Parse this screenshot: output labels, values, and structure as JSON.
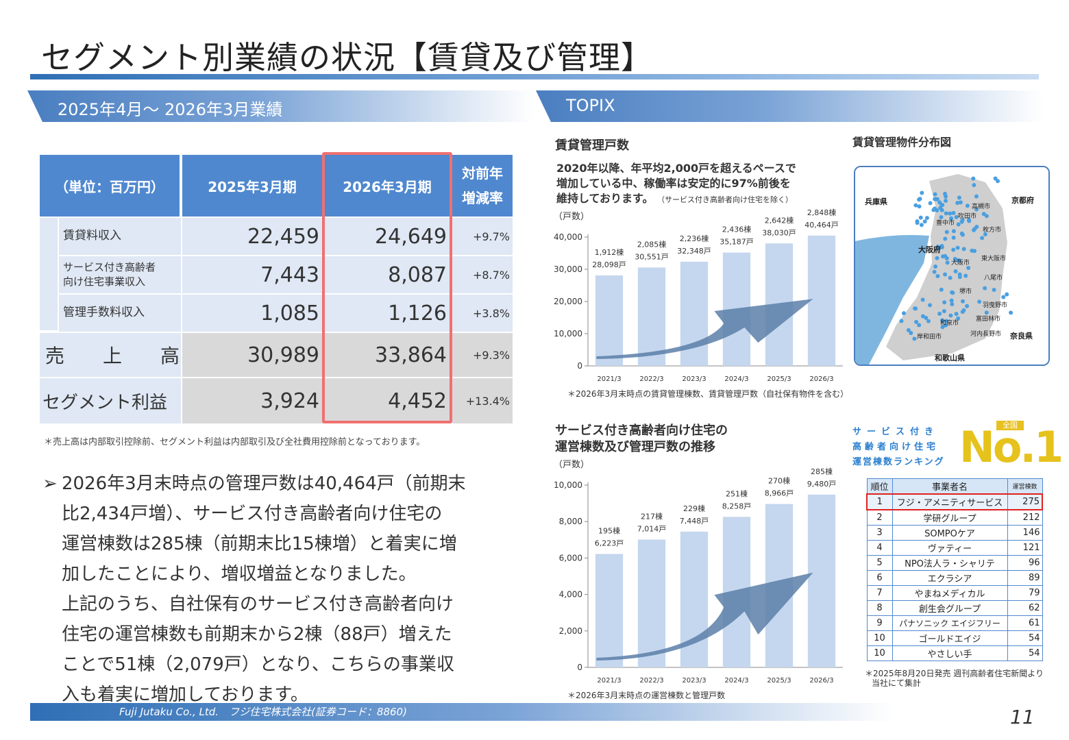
{
  "title": "セグメント別業績の状況【賃貸及び管理】",
  "left_section": {
    "label": "2025年4月～ 2026年3月業績"
  },
  "right_section": {
    "label": "TOPIX"
  },
  "table": {
    "unit_header": "（単位：百万円）",
    "col1": "2025年3月期",
    "col2": "2026年3月期",
    "col3_line1": "対前年",
    "col3_line2": "増減率",
    "rows": [
      {
        "label": "賃貸料収入",
        "label2": "",
        "prev": "22,459",
        "curr": "24,649",
        "rate": "+9.7%"
      },
      {
        "label": "サービス付き高齢者",
        "label2": "向け住宅事業収入",
        "prev": "7,443",
        "curr": "8,087",
        "rate": "+8.7%"
      },
      {
        "label": "管理手数料収入",
        "label2": "",
        "prev": "1,085",
        "curr": "1,126",
        "rate": "+3.8%"
      }
    ],
    "sales": {
      "label": "売　　上　　高",
      "prev": "30,989",
      "curr": "33,864",
      "rate": "+9.3%"
    },
    "profit": {
      "label": "セグメント利益",
      "prev": "3,924",
      "curr": "4,452",
      "rate": "+13.4%"
    },
    "note": "＊売上高は内部取引控除前、セグメント利益は内部取引及び全社費用控除前となっております。"
  },
  "summary": {
    "bullet": "➢",
    "lines": [
      "2026年3月末時点の管理戸数は40,464戸（前期末",
      "比2,434戸増）、サービス付き高齢者向け住宅の",
      "運営棟数は285棟（前期末比15棟増）と着実に増",
      "加したことにより、増収増益となりました。",
      "上記のうち、自社保有のサービス付き高齢者向け",
      "住宅の運営棟数も前期末から2棟（88戸）増えた",
      "ことで51棟（2,079戸）となり、こちらの事業収",
      "入も着実に増加しております。"
    ]
  },
  "chart1": {
    "heading": "賃貸管理戸数",
    "desc1": "2020年以降、年平均2,000戸を超えるペースで",
    "desc2": "増加している中、稼働率は安定的に97%前後を",
    "desc3": "維持しております。",
    "desc3_small": "（サービス付き高齢者向け住宅を除く）",
    "note": "＊2026年3月末時点の賃貸管理棟数、賃貸管理戸数（自社保有物件を含む）"
  },
  "chart2": {
    "heading1": "サービス付き高齢者向け住宅の",
    "heading2": "運営棟数及び管理戸数の推移",
    "note": "＊2026年3月末時点の運営棟数と管理戸数"
  },
  "chart_data": [
    {
      "type": "bar",
      "ylabel": "（戸数）",
      "categories": [
        "2021/3",
        "2022/3",
        "2023/3",
        "2024/3",
        "2025/3",
        "2026/3"
      ],
      "values": [
        28098,
        30551,
        32348,
        35187,
        38030,
        40464
      ],
      "label_top": [
        "1,912棟",
        "2,085棟",
        "2,236棟",
        "2,436棟",
        "2,642棟",
        "2,848棟"
      ],
      "label_bottom": [
        "28,098戸",
        "30,551戸",
        "32,348戸",
        "35,187戸",
        "38,030戸",
        "40,464戸"
      ],
      "ylim": [
        0,
        40000
      ],
      "yticks": [
        "0",
        "10,000",
        "20,000",
        "30,000",
        "40,000"
      ],
      "color": "#c5d7ee"
    },
    {
      "type": "bar",
      "ylabel": "（戸数）",
      "categories": [
        "2021/3",
        "2022/3",
        "2023/3",
        "2024/3",
        "2025/3",
        "2026/3"
      ],
      "values": [
        6223,
        7014,
        7448,
        8258,
        8966,
        9480
      ],
      "label_top": [
        "195棟",
        "217棟",
        "229棟",
        "251棟",
        "270棟",
        "285棟"
      ],
      "label_bottom": [
        "6,223戸",
        "7,014戸",
        "7,448戸",
        "8,258戸",
        "8,966戸",
        "9,480戸"
      ],
      "ylim": [
        0,
        10000
      ],
      "yticks": [
        "0",
        "2,000",
        "4,000",
        "6,000",
        "8,000",
        "10,000"
      ],
      "color": "#c5d7ee"
    }
  ],
  "map": {
    "heading": "賃貸管理物件分布図",
    "labels": [
      "兵庫県",
      "京都府",
      "大阪府",
      "奈良県",
      "和歌山県",
      "高槻市",
      "吹田市",
      "豊中市",
      "枚方市",
      "大阪市",
      "東大阪市",
      "八尾市",
      "堺市",
      "羽曳野市",
      "富田林市",
      "和泉市",
      "岸和田市",
      "河内長野市"
    ]
  },
  "ranking": {
    "title_lines": [
      "サービス付き",
      "高齢者向け住宅",
      "運営棟数ランキング"
    ],
    "badge_small": "全国",
    "badge_big": "No.1",
    "headers": [
      "順位",
      "事業者名",
      "運営棟数"
    ],
    "rows": [
      [
        "1",
        "フジ・アメニティサービス",
        "275"
      ],
      [
        "2",
        "学研グループ",
        "212"
      ],
      [
        "3",
        "SOMPOケア",
        "146"
      ],
      [
        "4",
        "ヴァティー",
        "121"
      ],
      [
        "5",
        "NPO法人ラ・シャリテ",
        "96"
      ],
      [
        "6",
        "エクラシア",
        "89"
      ],
      [
        "7",
        "やまねメディカル",
        "79"
      ],
      [
        "8",
        "創生会グループ",
        "62"
      ],
      [
        "9",
        "パナソニック エイジフリー",
        "61"
      ],
      [
        "10",
        "ゴールドエイジ",
        "54"
      ],
      [
        "10",
        "やさしい手",
        "54"
      ]
    ],
    "note1": "＊2025年8月20日発売 週刊高齢者住宅新聞より",
    "note2": "当社にて集計"
  },
  "footer": {
    "text": "Fuji Jutaku Co., Ltd.　フジ住宅株式会社(証券コード：8860)",
    "page": "11"
  }
}
